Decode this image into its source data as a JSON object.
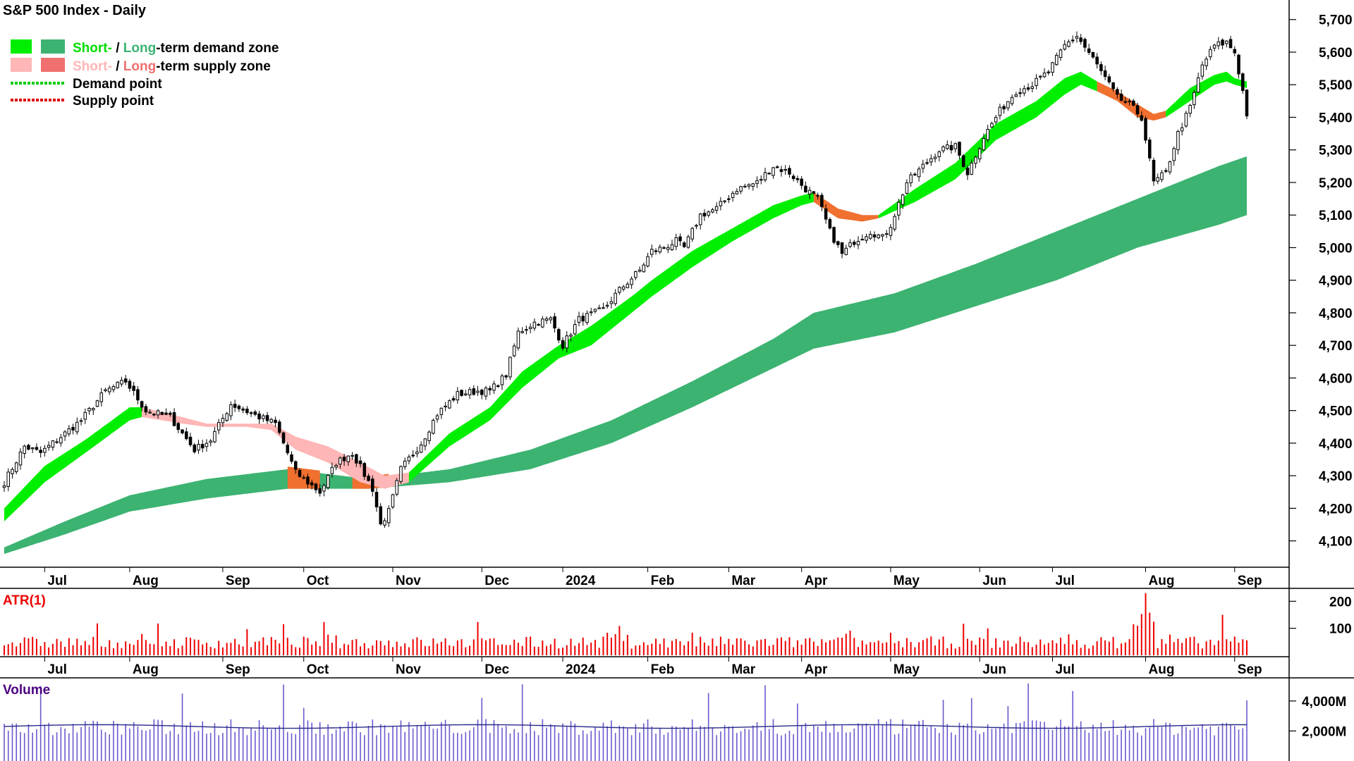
{
  "title": "S&P 500 Index - Daily",
  "legend": {
    "demand_short": "Short-",
    "demand_sep": " / ",
    "demand_long": "Long",
    "demand_rest": "-term demand zone",
    "supply_short": "Short-",
    "supply_sep": " / ",
    "supply_long": "Long",
    "supply_rest": "-term supply zone",
    "demand_point": "Demand point",
    "supply_point": "Supply point"
  },
  "colors": {
    "short_demand": "#00ee00",
    "long_demand": "#3cb371",
    "short_supply": "#ffb6b6",
    "long_supply": "#f07030",
    "demand_point": "#00cc00",
    "supply_point": "#dd0000",
    "atr": "#ee0000",
    "volume": "#6a5acd",
    "atr_title": "#ee0000",
    "volume_title": "#4b0082"
  },
  "months": [
    {
      "label": "Jul",
      "index": 10
    },
    {
      "label": "Aug",
      "index": 31
    },
    {
      "label": "Sep",
      "index": 54
    },
    {
      "label": "Oct",
      "index": 74
    },
    {
      "label": "Nov",
      "index": 96
    },
    {
      "label": "Dec",
      "index": 118
    },
    {
      "label": "2024",
      "index": 138
    },
    {
      "label": "Feb",
      "index": 159
    },
    {
      "label": "Mar",
      "index": 179
    },
    {
      "label": "Apr",
      "index": 197
    },
    {
      "label": "May",
      "index": 219
    },
    {
      "label": "Jun",
      "index": 241
    },
    {
      "label": "Jul",
      "index": 259
    },
    {
      "label": "Aug",
      "index": 282
    },
    {
      "label": "Sep",
      "index": 304
    }
  ],
  "chart_data": [
    {
      "type": "candlestick",
      "title": "S&P 500 Index - Daily",
      "ylim": [
        4030,
        5760
      ],
      "y_ticks": [
        "4,100",
        "4,200",
        "4,300",
        "4,400",
        "4,500",
        "4,600",
        "4,700",
        "4,800",
        "4,900",
        "5,000",
        "5,100",
        "5,200",
        "5,300",
        "5,400",
        "5,500",
        "5,600",
        "5,700"
      ],
      "y_tick_values": [
        4100,
        4200,
        4300,
        4400,
        4500,
        4600,
        4700,
        4800,
        4900,
        5000,
        5100,
        5200,
        5300,
        5400,
        5500,
        5600,
        5700
      ],
      "close_anchors": [
        [
          0,
          4280
        ],
        [
          5,
          4390
        ],
        [
          9,
          4370
        ],
        [
          14,
          4420
        ],
        [
          19,
          4470
        ],
        [
          25,
          4560
        ],
        [
          30,
          4590
        ],
        [
          35,
          4500
        ],
        [
          41,
          4480
        ],
        [
          47,
          4380
        ],
        [
          51,
          4410
        ],
        [
          56,
          4520
        ],
        [
          63,
          4480
        ],
        [
          67,
          4460
        ],
        [
          72,
          4310
        ],
        [
          78,
          4250
        ],
        [
          82,
          4340
        ],
        [
          86,
          4370
        ],
        [
          91,
          4260
        ],
        [
          93,
          4150
        ],
        [
          95,
          4190
        ],
        [
          98,
          4320
        ],
        [
          103,
          4400
        ],
        [
          107,
          4490
        ],
        [
          112,
          4550
        ],
        [
          117,
          4560
        ],
        [
          120,
          4560
        ],
        [
          124,
          4610
        ],
        [
          127,
          4740
        ],
        [
          131,
          4770
        ],
        [
          135,
          4780
        ],
        [
          138,
          4700
        ],
        [
          142,
          4780
        ],
        [
          148,
          4810
        ],
        [
          152,
          4870
        ],
        [
          157,
          4930
        ],
        [
          160,
          4990
        ],
        [
          163,
          5000
        ],
        [
          166,
          5020
        ],
        [
          168,
          5000
        ],
        [
          172,
          5100
        ],
        [
          176,
          5120
        ],
        [
          181,
          5180
        ],
        [
          186,
          5200
        ],
        [
          190,
          5250
        ],
        [
          194,
          5230
        ],
        [
          198,
          5180
        ],
        [
          201,
          5150
        ],
        [
          204,
          5050
        ],
        [
          207,
          4980
        ],
        [
          210,
          5020
        ],
        [
          214,
          5050
        ],
        [
          217,
          5030
        ],
        [
          219,
          5070
        ],
        [
          223,
          5200
        ],
        [
          227,
          5250
        ],
        [
          231,
          5300
        ],
        [
          235,
          5310
        ],
        [
          238,
          5230
        ],
        [
          242,
          5340
        ],
        [
          246,
          5420
        ],
        [
          250,
          5480
        ],
        [
          254,
          5500
        ],
        [
          258,
          5540
        ],
        [
          262,
          5620
        ],
        [
          265,
          5650
        ],
        [
          269,
          5580
        ],
        [
          272,
          5520
        ],
        [
          275,
          5460
        ],
        [
          278,
          5440
        ],
        [
          281,
          5400
        ],
        [
          284,
          5200
        ],
        [
          287,
          5230
        ],
        [
          290,
          5350
        ],
        [
          293,
          5430
        ],
        [
          296,
          5560
        ],
        [
          299,
          5620
        ],
        [
          302,
          5630
        ],
        [
          304,
          5600
        ],
        [
          306,
          5480
        ],
        [
          307,
          5410
        ]
      ],
      "short_demand_upper": [
        [
          0,
          4200
        ],
        [
          10,
          4330
        ],
        [
          20,
          4410
        ],
        [
          31,
          4510
        ],
        [
          34,
          4510
        ]
      ],
      "short_demand_lower": [
        [
          0,
          4160
        ],
        [
          10,
          4280
        ],
        [
          20,
          4370
        ],
        [
          31,
          4470
        ],
        [
          34,
          4480
        ]
      ],
      "short_supply_upper": [
        [
          34,
          4510
        ],
        [
          44,
          4480
        ],
        [
          50,
          4460
        ],
        [
          60,
          4460
        ],
        [
          66,
          4460
        ],
        [
          72,
          4420
        ],
        [
          80,
          4390
        ],
        [
          88,
          4340
        ],
        [
          94,
          4300
        ],
        [
          100,
          4310
        ]
      ],
      "short_supply_lower": [
        [
          34,
          4480
        ],
        [
          44,
          4460
        ],
        [
          50,
          4450
        ],
        [
          60,
          4450
        ],
        [
          66,
          4440
        ],
        [
          72,
          4380
        ],
        [
          80,
          4340
        ],
        [
          88,
          4280
        ],
        [
          94,
          4260
        ],
        [
          100,
          4280
        ]
      ],
      "short_demand2_upper": [
        [
          100,
          4310
        ],
        [
          110,
          4430
        ],
        [
          120,
          4510
        ],
        [
          128,
          4620
        ],
        [
          137,
          4700
        ],
        [
          145,
          4760
        ],
        [
          155,
          4850
        ],
        [
          160,
          4900
        ],
        [
          170,
          4990
        ],
        [
          180,
          5060
        ],
        [
          190,
          5130
        ],
        [
          197,
          5160
        ],
        [
          200,
          5170
        ]
      ],
      "short_demand2_lower": [
        [
          100,
          4280
        ],
        [
          110,
          4390
        ],
        [
          120,
          4470
        ],
        [
          128,
          4570
        ],
        [
          137,
          4660
        ],
        [
          145,
          4700
        ],
        [
          155,
          4800
        ],
        [
          160,
          4850
        ],
        [
          170,
          4940
        ],
        [
          180,
          5020
        ],
        [
          190,
          5090
        ],
        [
          197,
          5130
        ],
        [
          200,
          5140
        ]
      ],
      "short_supply2_upper": [
        [
          200,
          5170
        ],
        [
          206,
          5120
        ],
        [
          212,
          5100
        ],
        [
          216,
          5100
        ]
      ],
      "short_supply2_lower": [
        [
          200,
          5140
        ],
        [
          206,
          5090
        ],
        [
          212,
          5080
        ],
        [
          216,
          5090
        ]
      ],
      "short_demand3_upper": [
        [
          216,
          5100
        ],
        [
          225,
          5180
        ],
        [
          235,
          5260
        ],
        [
          245,
          5380
        ],
        [
          255,
          5450
        ],
        [
          262,
          5520
        ],
        [
          266,
          5540
        ],
        [
          270,
          5510
        ]
      ],
      "short_demand3_lower": [
        [
          216,
          5090
        ],
        [
          225,
          5140
        ],
        [
          235,
          5210
        ],
        [
          245,
          5330
        ],
        [
          255,
          5400
        ],
        [
          262,
          5470
        ],
        [
          266,
          5500
        ],
        [
          270,
          5480
        ]
      ],
      "short_supply3_upper": [
        [
          270,
          5510
        ],
        [
          275,
          5480
        ],
        [
          280,
          5440
        ],
        [
          284,
          5410
        ],
        [
          287,
          5420
        ]
      ],
      "short_supply3_lower": [
        [
          270,
          5480
        ],
        [
          275,
          5450
        ],
        [
          280,
          5400
        ],
        [
          284,
          5390
        ],
        [
          287,
          5400
        ]
      ],
      "short_demand4_upper": [
        [
          287,
          5420
        ],
        [
          293,
          5490
        ],
        [
          299,
          5530
        ],
        [
          302,
          5540
        ],
        [
          304,
          5520
        ],
        [
          307,
          5510
        ]
      ],
      "short_demand4_lower": [
        [
          287,
          5400
        ],
        [
          293,
          5450
        ],
        [
          299,
          5500
        ],
        [
          302,
          5510
        ],
        [
          304,
          5500
        ],
        [
          307,
          5490
        ]
      ],
      "long_zone_upper": [
        [
          0,
          4080
        ],
        [
          15,
          4160
        ],
        [
          31,
          4240
        ],
        [
          50,
          4290
        ],
        [
          70,
          4320
        ],
        [
          90,
          4290
        ],
        [
          110,
          4320
        ],
        [
          130,
          4380
        ],
        [
          150,
          4470
        ],
        [
          170,
          4590
        ],
        [
          190,
          4720
        ],
        [
          200,
          4800
        ],
        [
          220,
          4860
        ],
        [
          240,
          4950
        ],
        [
          260,
          5050
        ],
        [
          280,
          5150
        ],
        [
          300,
          5250
        ],
        [
          307,
          5280
        ]
      ],
      "long_zone_lower": [
        [
          0,
          4060
        ],
        [
          15,
          4120
        ],
        [
          31,
          4190
        ],
        [
          50,
          4230
        ],
        [
          70,
          4260
        ],
        [
          90,
          4260
        ],
        [
          110,
          4280
        ],
        [
          130,
          4320
        ],
        [
          150,
          4400
        ],
        [
          170,
          4510
        ],
        [
          190,
          4630
        ],
        [
          200,
          4690
        ],
        [
          220,
          4740
        ],
        [
          240,
          4820
        ],
        [
          260,
          4900
        ],
        [
          280,
          5000
        ],
        [
          300,
          5070
        ],
        [
          307,
          5100
        ]
      ],
      "long_supply_spans": [
        [
          70,
          78
        ],
        [
          86,
          95
        ]
      ]
    },
    {
      "type": "bar",
      "title": "ATR(1)",
      "ylim": [
        0,
        240
      ],
      "y_ticks": [
        "100",
        "200"
      ],
      "y_tick_values": [
        100,
        200
      ],
      "series_hint": "daily true range, typically 30-70, spikes up to ~230 in early Aug 2024"
    },
    {
      "type": "bar",
      "title": "Volume",
      "ylim": [
        0,
        5400
      ],
      "y_ticks": [
        "2,000M",
        "4,000M"
      ],
      "y_tick_values": [
        2000,
        4000
      ],
      "series_hint": "daily volume in millions, typically ~2,000M-3,000M, spikes up to ~5,100M"
    }
  ]
}
